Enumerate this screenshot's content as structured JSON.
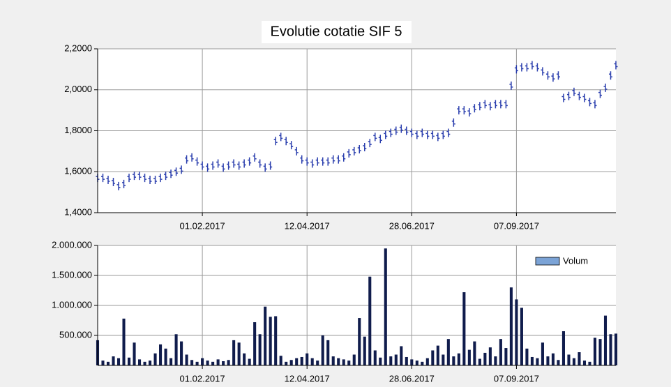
{
  "chart_data": [
    {
      "type": "stock",
      "title": "Evolutie cotatie SIF 5",
      "color": "#2b3fae",
      "grid": true,
      "xlim": [
        0,
        99
      ],
      "xticks": [
        {
          "value": 20,
          "label": "01.02.2017"
        },
        {
          "value": 40,
          "label": "12.04.2017"
        },
        {
          "value": 60,
          "label": "28.06.2017"
        },
        {
          "value": 80,
          "label": "07.09.2017"
        }
      ],
      "ylim": [
        1.4,
        2.2
      ],
      "yticks": [
        {
          "value": 1.4,
          "label": "1,4000"
        },
        {
          "value": 1.6,
          "label": "1,6000"
        },
        {
          "value": 1.8,
          "label": "1,8000"
        },
        {
          "value": 2.0,
          "label": "2,0000"
        },
        {
          "value": 2.2,
          "label": "2,2000"
        }
      ],
      "values": [
        1.57,
        1.57,
        1.56,
        1.55,
        1.53,
        1.54,
        1.57,
        1.58,
        1.58,
        1.57,
        1.56,
        1.56,
        1.57,
        1.58,
        1.59,
        1.6,
        1.61,
        1.66,
        1.67,
        1.65,
        1.63,
        1.62,
        1.63,
        1.64,
        1.62,
        1.63,
        1.64,
        1.63,
        1.64,
        1.65,
        1.67,
        1.64,
        1.62,
        1.63,
        1.75,
        1.77,
        1.75,
        1.73,
        1.7,
        1.66,
        1.65,
        1.64,
        1.65,
        1.65,
        1.65,
        1.66,
        1.66,
        1.67,
        1.69,
        1.7,
        1.71,
        1.72,
        1.74,
        1.77,
        1.76,
        1.78,
        1.79,
        1.8,
        1.81,
        1.8,
        1.79,
        1.78,
        1.79,
        1.78,
        1.78,
        1.77,
        1.78,
        1.79,
        1.84,
        1.9,
        1.9,
        1.89,
        1.91,
        1.92,
        1.93,
        1.92,
        1.93,
        1.93,
        1.93,
        2.02,
        2.1,
        2.11,
        2.11,
        2.12,
        2.11,
        2.09,
        2.07,
        2.06,
        2.07,
        1.96,
        1.97,
        1.99,
        1.97,
        1.96,
        1.94,
        1.93,
        1.98,
        2.01,
        2.07,
        2.12
      ]
    },
    {
      "type": "bar",
      "color": "#101c4c",
      "grid": true,
      "legend": "top-right",
      "legend_color": "#7ba3d6",
      "series": [
        {
          "name": "Volum",
          "values": [
            420000,
            80000,
            60000,
            150000,
            120000,
            780000,
            130000,
            380000,
            100000,
            60000,
            80000,
            200000,
            350000,
            280000,
            120000,
            520000,
            400000,
            180000,
            90000,
            60000,
            120000,
            80000,
            60000,
            100000,
            70000,
            90000,
            420000,
            380000,
            200000,
            110000,
            720000,
            520000,
            980000,
            810000,
            820000,
            160000,
            60000,
            90000,
            120000,
            140000,
            200000,
            120000,
            80000,
            500000,
            420000,
            150000,
            120000,
            100000,
            80000,
            180000,
            790000,
            480000,
            1480000,
            250000,
            130000,
            1950000,
            150000,
            180000,
            320000,
            140000,
            100000,
            80000,
            60000,
            120000,
            250000,
            330000,
            180000,
            440000,
            150000,
            200000,
            1220000,
            260000,
            400000,
            110000,
            210000,
            300000,
            150000,
            440000,
            290000,
            1300000,
            1100000,
            960000,
            280000,
            140000,
            120000,
            380000,
            150000,
            200000,
            90000,
            570000,
            180000,
            120000,
            220000,
            80000,
            60000,
            460000,
            440000,
            830000,
            520000,
            530000
          ]
        }
      ],
      "xlim": [
        0,
        99
      ],
      "xticks": [
        {
          "value": 20,
          "label": "01.02.2017"
        },
        {
          "value": 40,
          "label": "12.04.2017"
        },
        {
          "value": 60,
          "label": "28.06.2017"
        },
        {
          "value": 80,
          "label": "07.09.2017"
        }
      ],
      "ylim": [
        0,
        2000000
      ],
      "yticks": [
        {
          "value": 500000,
          "label": "500.000"
        },
        {
          "value": 1000000,
          "label": "1.000.000"
        },
        {
          "value": 1500000,
          "label": "1.500.000"
        },
        {
          "value": 2000000,
          "label": "2.000.000"
        }
      ]
    }
  ]
}
